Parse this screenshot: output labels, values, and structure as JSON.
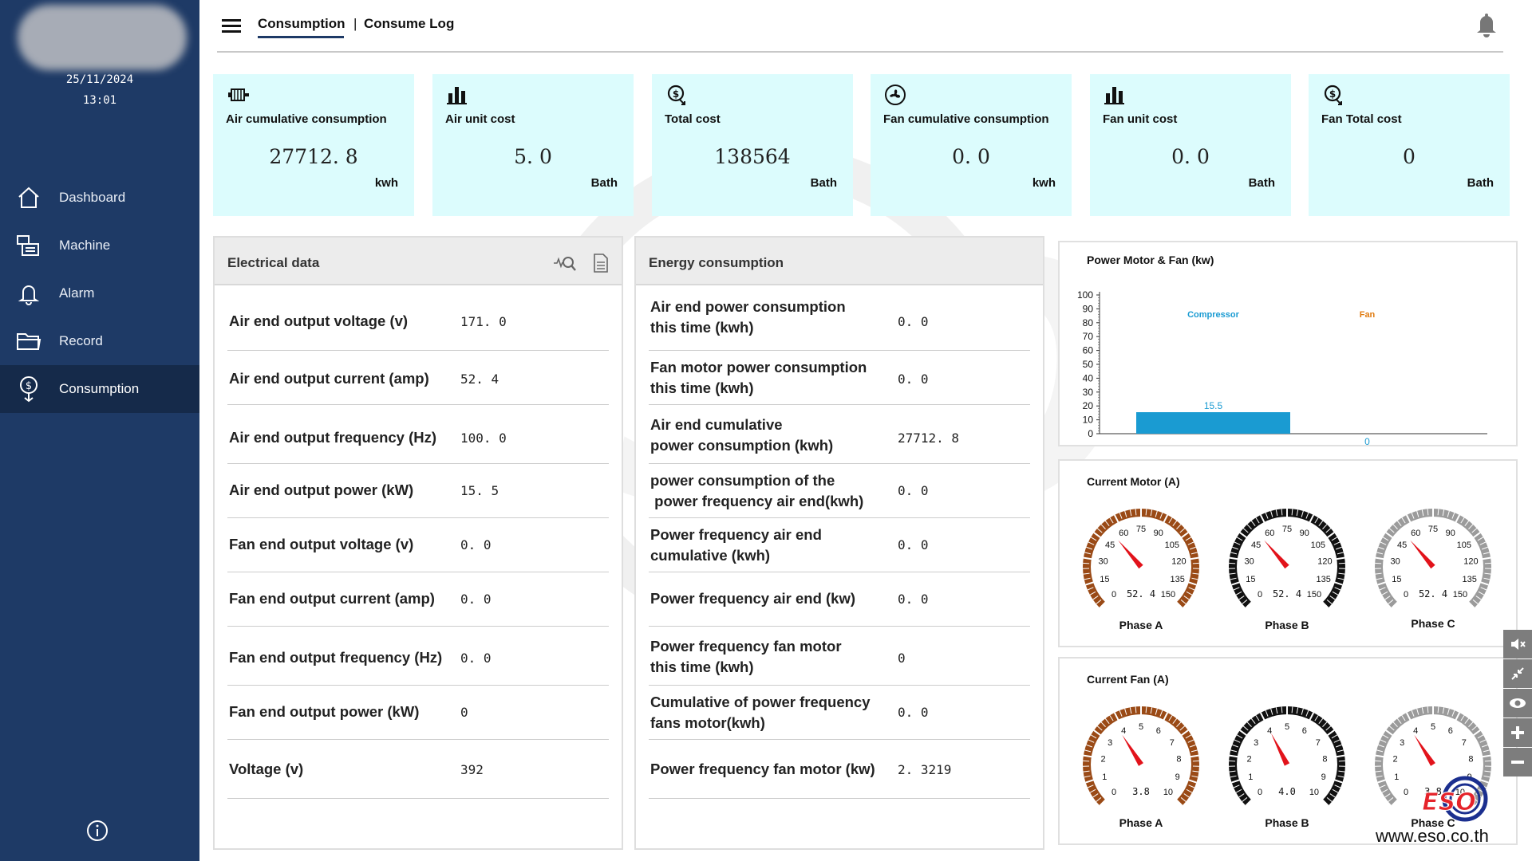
{
  "sidebar": {
    "date": "25/11/2024",
    "time": "13:01",
    "items": [
      {
        "label": "Dashboard",
        "icon": "home-icon"
      },
      {
        "label": "Machine",
        "icon": "machine-icon"
      },
      {
        "label": "Alarm",
        "icon": "bell-icon"
      },
      {
        "label": "Record",
        "icon": "folder-icon"
      },
      {
        "label": "Consumption",
        "icon": "consumption-icon",
        "active": true
      }
    ]
  },
  "header": {
    "tab_consumption": "Consumption",
    "separator": "|",
    "tab_log": "Consume Log"
  },
  "cards": [
    {
      "title": "Air cumulative consumption",
      "value": "27712. 8",
      "unit": "kwh",
      "icon": "motor-icon"
    },
    {
      "title": "Air unit cost",
      "value": "5. 0",
      "unit": "Bath",
      "icon": "bar-chart-icon"
    },
    {
      "title": "Total cost",
      "value": "138564",
      "unit": "Bath",
      "icon": "cost-icon"
    },
    {
      "title": "Fan cumulative consumption",
      "value": "0. 0",
      "unit": "kwh",
      "icon": "fan-icon"
    },
    {
      "title": "Fan unit cost",
      "value": "0. 0",
      "unit": "Bath",
      "icon": "bar-chart-icon"
    },
    {
      "title": "Fan Total cost",
      "value": "0",
      "unit": "Bath",
      "icon": "cost-icon"
    }
  ],
  "electrical": {
    "title": "Electrical data",
    "rows": [
      {
        "label": "Air end output voltage (v)",
        "value": "171. 0"
      },
      {
        "label": "Air end output current (amp)",
        "value": "52. 4"
      },
      {
        "label": "Air end output frequency (Hz)",
        "value": "100. 0"
      },
      {
        "label": "Air end output power (kW)",
        "value": "15. 5"
      },
      {
        "label": "Fan end output voltage (v)",
        "value": "0. 0"
      },
      {
        "label": "Fan end output current (amp)",
        "value": "0. 0"
      },
      {
        "label": "Fan end output frequency (Hz)",
        "value": "0. 0"
      },
      {
        "label": "Fan end output power (kW)",
        "value": "0"
      },
      {
        "label": "Voltage (v)",
        "value": "392"
      }
    ]
  },
  "energy": {
    "title": "Energy consumption",
    "rows": [
      {
        "line1": "Air end power consumption",
        "line2": "this time (kwh)",
        "value": "0. 0"
      },
      {
        "line1": "Fan motor power consumption",
        "line2": "this time (kwh)",
        "value": "0. 0"
      },
      {
        "line1": "Air end cumulative",
        "line2": "power consumption (kwh)",
        "value": "27712. 8"
      },
      {
        "line1": "power consumption of the",
        "line2": " power frequency air end(kwh)",
        "value": "0. 0"
      },
      {
        "line1": "Power frequency air end",
        "line2": "cumulative (kwh)",
        "value": "0. 0"
      },
      {
        "line1": "Power frequency air end (kw)",
        "line2": "",
        "value": "0. 0"
      },
      {
        "line1": "Power frequency fan motor",
        "line2": "this time (kwh)",
        "value": "0"
      },
      {
        "line1": "Cumulative of power frequency",
        "line2": "fans motor(kwh)",
        "value": "0. 0"
      },
      {
        "line1": "Power frequency fan motor (kw)",
        "line2": "",
        "value": "2. 3219"
      }
    ]
  },
  "chart_data": {
    "type": "bar",
    "title": "Power Motor & Fan (kw)",
    "categories": [
      "Compressor",
      "Fan"
    ],
    "values": [
      15.5,
      0
    ],
    "value_labels": [
      "15.5",
      "0"
    ],
    "ylim": [
      0,
      100
    ],
    "yticks": [
      "0",
      "10",
      "20",
      "30",
      "40",
      "50",
      "60",
      "70",
      "80",
      "90",
      "100"
    ],
    "colors": {
      "Compressor": "#1a9bd2",
      "Fan": "#e07b10"
    }
  },
  "gauges_motor": {
    "title": "Current Motor (A)",
    "max": 150,
    "ticks": [
      "0",
      "15",
      "30",
      "45",
      "60",
      "75",
      "90",
      "105",
      "120",
      "135",
      "150"
    ],
    "items": [
      {
        "label": "Phase A",
        "value": 52.4,
        "display": "52. 4",
        "theme": "#9a4a16"
      },
      {
        "label": "Phase B",
        "value": 52.4,
        "display": "52. 4",
        "theme": "#111111"
      },
      {
        "label": "Phase C",
        "value": 52.4,
        "display": "52. 4",
        "theme": "#9b9b9b"
      }
    ]
  },
  "gauges_fan": {
    "title": "Current Fan (A)",
    "max": 10,
    "ticks": [
      "0",
      "1",
      "2",
      "3",
      "4",
      "5",
      "6",
      "7",
      "8",
      "9",
      "10"
    ],
    "items": [
      {
        "label": "Phase A",
        "value": 3.8,
        "display": "3.8",
        "theme": "#9a4a16"
      },
      {
        "label": "Phase B",
        "value": 4.0,
        "display": "4.0",
        "theme": "#111111"
      },
      {
        "label": "Phase C",
        "value": 3.8,
        "display": "3.8",
        "theme": "#9b9b9b"
      }
    ]
  },
  "side_controls": [
    "mute-icon",
    "collapse-icon",
    "eye-icon",
    "zoom-in-icon",
    "zoom-out-icon"
  ],
  "watermark": {
    "logo": "ESO",
    "url": "www.eso.co.th"
  }
}
